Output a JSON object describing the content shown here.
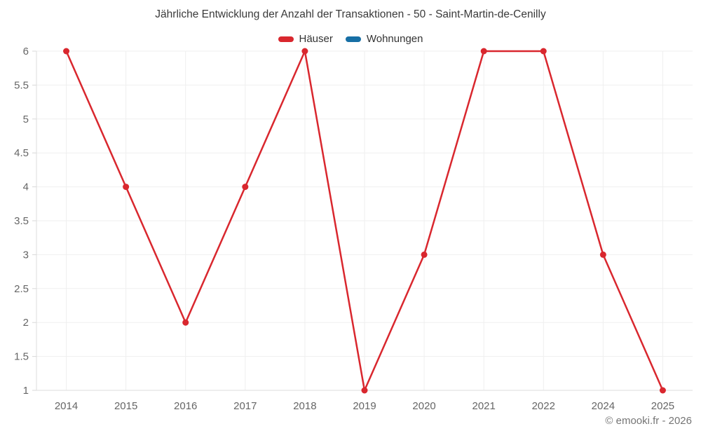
{
  "title": "Jährliche Entwicklung der Anzahl der Transaktionen - 50 - Saint-Martin-de-Cenilly",
  "attribution": "© emooki.fr - 2026",
  "legend": {
    "items": [
      {
        "label": "Häuser",
        "color": "#d9272e"
      },
      {
        "label": "Wohnungen",
        "color": "#176fa5"
      }
    ]
  },
  "chart_data": {
    "type": "line",
    "title": "Jährliche Entwicklung der Anzahl der Transaktionen - 50 - Saint-Martin-de-Cenilly",
    "categories": [
      "2014",
      "2015",
      "2016",
      "2017",
      "2018",
      "2019",
      "2020",
      "2021",
      "2022",
      "2024",
      "2025"
    ],
    "series": [
      {
        "name": "Häuser",
        "color": "#d9272e",
        "values": [
          6,
          4,
          2,
          4,
          6,
          1,
          3,
          6,
          6,
          3,
          1
        ]
      },
      {
        "name": "Wohnungen",
        "color": "#176fa5",
        "values": []
      }
    ],
    "xlabel": "",
    "ylabel": "",
    "ylim": [
      1,
      6
    ],
    "ytick_step": 0.5,
    "grid": true,
    "legend_position": "top",
    "marker": "circle"
  },
  "colors": {
    "background": "#ffffff",
    "title_text": "#3a3a3a",
    "legend_text": "#333333",
    "axis_label": "#666666",
    "gridline": "#efefef",
    "axis_line": "#dcdcdc",
    "tick": "#d8d8d8",
    "attribution_text": "#757575"
  }
}
